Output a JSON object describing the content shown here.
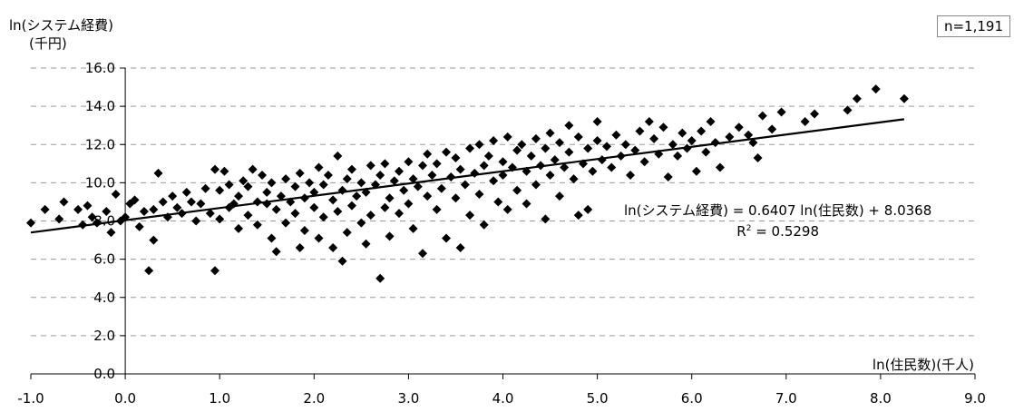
{
  "chart_data": {
    "type": "scatter",
    "ylabel_line1": "ln(システム経費)",
    "ylabel_line2": "(千円)",
    "xlabel": "ln(住民数)(千人)",
    "sample_label": "n=1,191",
    "xlim": [
      -1.0,
      9.0
    ],
    "ylim": [
      0.0,
      16.0
    ],
    "xticks": [
      "-1.0",
      "0.0",
      "1.0",
      "2.0",
      "3.0",
      "4.0",
      "5.0",
      "6.0",
      "7.0",
      "8.0",
      "9.0"
    ],
    "yticks": [
      "0.0",
      "2.0",
      "4.0",
      "6.0",
      "8.0",
      "10.0",
      "12.0",
      "14.0",
      "16.0"
    ],
    "grid": "horizontal-dashed",
    "trendline": {
      "slope": 0.6407,
      "intercept": 8.0368,
      "x_range": [
        -1.0,
        8.25
      ]
    },
    "equation": "ln(システム経費) = 0.6407 ln(住民数) + 8.0368",
    "r2_label": "R",
    "r2_power": "2",
    "r2_value": " = 0.5298",
    "marker_color": "#000000",
    "points": [
      [
        -1.0,
        7.9
      ],
      [
        -0.85,
        8.6
      ],
      [
        -0.7,
        8.1
      ],
      [
        -0.65,
        9.0
      ],
      [
        -0.5,
        8.6
      ],
      [
        -0.45,
        7.8
      ],
      [
        -0.4,
        8.8
      ],
      [
        -0.35,
        8.2
      ],
      [
        -0.3,
        7.9
      ],
      [
        -0.2,
        8.5
      ],
      [
        -0.15,
        7.4
      ],
      [
        -0.1,
        9.4
      ],
      [
        -0.05,
        8.0
      ],
      [
        0.0,
        8.2
      ],
      [
        0.05,
        8.9
      ],
      [
        0.1,
        9.1
      ],
      [
        0.15,
        7.7
      ],
      [
        0.2,
        8.5
      ],
      [
        0.25,
        5.4
      ],
      [
        0.3,
        7.0
      ],
      [
        0.3,
        8.6
      ],
      [
        0.35,
        10.5
      ],
      [
        0.4,
        9.0
      ],
      [
        0.45,
        8.2
      ],
      [
        0.5,
        9.3
      ],
      [
        0.55,
        8.7
      ],
      [
        0.6,
        8.4
      ],
      [
        0.65,
        9.5
      ],
      [
        0.7,
        9.0
      ],
      [
        0.75,
        8.0
      ],
      [
        0.8,
        8.9
      ],
      [
        0.85,
        9.7
      ],
      [
        0.9,
        8.4
      ],
      [
        0.95,
        10.7
      ],
      [
        0.95,
        5.4
      ],
      [
        1.0,
        8.1
      ],
      [
        1.0,
        9.6
      ],
      [
        1.05,
        10.6
      ],
      [
        1.1,
        8.7
      ],
      [
        1.1,
        9.9
      ],
      [
        1.15,
        8.9
      ],
      [
        1.2,
        7.6
      ],
      [
        1.2,
        9.3
      ],
      [
        1.25,
        10.1
      ],
      [
        1.3,
        8.3
      ],
      [
        1.3,
        9.8
      ],
      [
        1.35,
        10.7
      ],
      [
        1.4,
        7.8
      ],
      [
        1.4,
        9.0
      ],
      [
        1.45,
        10.4
      ],
      [
        1.5,
        8.9
      ],
      [
        1.5,
        9.5
      ],
      [
        1.55,
        7.1
      ],
      [
        1.55,
        10.0
      ],
      [
        1.6,
        6.4
      ],
      [
        1.6,
        8.6
      ],
      [
        1.65,
        9.3
      ],
      [
        1.7,
        10.2
      ],
      [
        1.7,
        7.9
      ],
      [
        1.75,
        9.0
      ],
      [
        1.8,
        8.4
      ],
      [
        1.8,
        9.8
      ],
      [
        1.85,
        10.5
      ],
      [
        1.85,
        6.6
      ],
      [
        1.9,
        7.5
      ],
      [
        1.9,
        9.2
      ],
      [
        1.95,
        10.0
      ],
      [
        2.0,
        8.7
      ],
      [
        2.0,
        9.5
      ],
      [
        2.05,
        10.8
      ],
      [
        2.05,
        7.1
      ],
      [
        2.1,
        8.2
      ],
      [
        2.1,
        9.9
      ],
      [
        2.15,
        10.4
      ],
      [
        2.2,
        6.6
      ],
      [
        2.2,
        9.1
      ],
      [
        2.25,
        8.5
      ],
      [
        2.25,
        11.4
      ],
      [
        2.3,
        5.9
      ],
      [
        2.3,
        9.6
      ],
      [
        2.35,
        7.4
      ],
      [
        2.35,
        10.2
      ],
      [
        2.4,
        8.8
      ],
      [
        2.4,
        10.7
      ],
      [
        2.45,
        9.3
      ],
      [
        2.5,
        7.9
      ],
      [
        2.5,
        10.0
      ],
      [
        2.55,
        6.8
      ],
      [
        2.55,
        9.5
      ],
      [
        2.6,
        10.9
      ],
      [
        2.6,
        8.3
      ],
      [
        2.65,
        9.9
      ],
      [
        2.7,
        5.0
      ],
      [
        2.7,
        10.4
      ],
      [
        2.75,
        8.7
      ],
      [
        2.75,
        11.0
      ],
      [
        2.8,
        9.2
      ],
      [
        2.8,
        7.2
      ],
      [
        2.85,
        10.1
      ],
      [
        2.9,
        8.4
      ],
      [
        2.9,
        10.6
      ],
      [
        2.95,
        9.6
      ],
      [
        3.0,
        11.1
      ],
      [
        3.0,
        8.9
      ],
      [
        3.05,
        10.2
      ],
      [
        3.05,
        7.6
      ],
      [
        3.1,
        9.8
      ],
      [
        3.15,
        6.3
      ],
      [
        3.15,
        10.9
      ],
      [
        3.2,
        9.3
      ],
      [
        3.2,
        11.5
      ],
      [
        3.25,
        10.4
      ],
      [
        3.3,
        8.6
      ],
      [
        3.3,
        11.0
      ],
      [
        3.35,
        9.7
      ],
      [
        3.4,
        11.6
      ],
      [
        3.4,
        7.1
      ],
      [
        3.45,
        10.3
      ],
      [
        3.5,
        9.2
      ],
      [
        3.5,
        11.3
      ],
      [
        3.55,
        10.7
      ],
      [
        3.55,
        6.6
      ],
      [
        3.6,
        9.9
      ],
      [
        3.65,
        11.8
      ],
      [
        3.65,
        8.3
      ],
      [
        3.7,
        10.5
      ],
      [
        3.75,
        9.4
      ],
      [
        3.75,
        12.0
      ],
      [
        3.8,
        10.9
      ],
      [
        3.8,
        7.8
      ],
      [
        3.85,
        11.4
      ],
      [
        3.9,
        10.1
      ],
      [
        3.9,
        12.2
      ],
      [
        3.95,
        9.0
      ],
      [
        4.0,
        11.1
      ],
      [
        4.0,
        10.4
      ],
      [
        4.05,
        12.4
      ],
      [
        4.05,
        8.6
      ],
      [
        4.1,
        10.8
      ],
      [
        4.15,
        11.7
      ],
      [
        4.15,
        9.6
      ],
      [
        4.2,
        12.0
      ],
      [
        4.25,
        10.6
      ],
      [
        4.25,
        8.9
      ],
      [
        4.3,
        11.4
      ],
      [
        4.35,
        12.3
      ],
      [
        4.35,
        9.9
      ],
      [
        4.4,
        10.9
      ],
      [
        4.45,
        11.8
      ],
      [
        4.45,
        8.1
      ],
      [
        4.5,
        10.4
      ],
      [
        4.5,
        12.6
      ],
      [
        4.55,
        11.2
      ],
      [
        4.6,
        9.3
      ],
      [
        4.6,
        12.1
      ],
      [
        4.65,
        10.8
      ],
      [
        4.7,
        11.6
      ],
      [
        4.7,
        13.0
      ],
      [
        4.75,
        10.2
      ],
      [
        4.8,
        12.4
      ],
      [
        4.8,
        8.3
      ],
      [
        4.85,
        11.0
      ],
      [
        4.9,
        11.8
      ],
      [
        4.9,
        8.6
      ],
      [
        4.95,
        10.6
      ],
      [
        5.0,
        13.2
      ],
      [
        5.0,
        12.2
      ],
      [
        5.05,
        11.2
      ],
      [
        5.1,
        11.9
      ],
      [
        5.15,
        10.8
      ],
      [
        5.2,
        12.5
      ],
      [
        5.25,
        11.4
      ],
      [
        5.3,
        12.0
      ],
      [
        5.35,
        10.4
      ],
      [
        5.4,
        11.7
      ],
      [
        5.45,
        12.7
      ],
      [
        5.5,
        11.1
      ],
      [
        5.55,
        13.2
      ],
      [
        5.6,
        12.3
      ],
      [
        5.65,
        11.5
      ],
      [
        5.7,
        12.9
      ],
      [
        5.75,
        10.3
      ],
      [
        5.8,
        12.0
      ],
      [
        5.85,
        11.4
      ],
      [
        5.9,
        12.6
      ],
      [
        5.95,
        11.8
      ],
      [
        6.0,
        12.2
      ],
      [
        6.05,
        10.6
      ],
      [
        6.1,
        12.7
      ],
      [
        6.15,
        11.6
      ],
      [
        6.2,
        13.2
      ],
      [
        6.25,
        12.1
      ],
      [
        6.3,
        10.8
      ],
      [
        6.4,
        12.4
      ],
      [
        6.5,
        12.9
      ],
      [
        6.6,
        12.5
      ],
      [
        6.65,
        12.1
      ],
      [
        6.7,
        11.3
      ],
      [
        6.75,
        13.5
      ],
      [
        6.85,
        12.8
      ],
      [
        6.95,
        13.7
      ],
      [
        7.2,
        13.2
      ],
      [
        7.3,
        13.6
      ],
      [
        7.65,
        13.8
      ],
      [
        7.75,
        14.4
      ],
      [
        7.95,
        14.9
      ],
      [
        8.25,
        14.4
      ]
    ]
  }
}
